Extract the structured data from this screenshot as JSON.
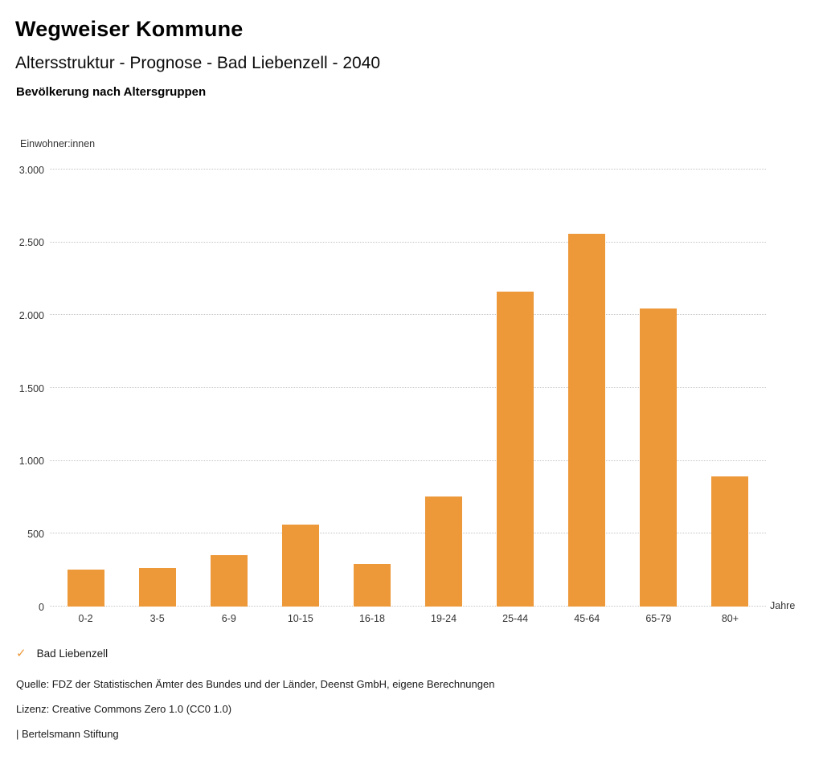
{
  "header": {
    "title": "Wegweiser Kommune",
    "subtitle": "Altersstruktur - Prognose - Bad Liebenzell - 2040",
    "chart_heading": "Bevölkerung nach Altersgruppen"
  },
  "chart_data": {
    "type": "bar",
    "title": "Bevölkerung nach Altersgruppen",
    "categories": [
      "0-2",
      "3-5",
      "6-9",
      "10-15",
      "16-18",
      "19-24",
      "25-44",
      "45-64",
      "65-79",
      "80+"
    ],
    "series": [
      {
        "name": "Bad Liebenzell",
        "values": [
          255,
          265,
          355,
          560,
          295,
          755,
          2160,
          2560,
          2045,
          895
        ]
      }
    ],
    "xlabel": "Jahre",
    "ylabel": "Einwohner:innen",
    "ylim": [
      0,
      3000
    ],
    "ytick_step": 500,
    "ytick_labels": [
      "0",
      "500",
      "1.000",
      "1.500",
      "2.000",
      "2.500",
      "3.000"
    ],
    "grid": "horizontal-dotted",
    "legend_position": "bottom-left",
    "bar_color": "#ED9839"
  },
  "legend": {
    "check_icon": "✓",
    "label": "Bad Liebenzell"
  },
  "footer": {
    "source": "Quelle: FDZ der Statistischen Ämter des Bundes und der Länder, Deenst GmbH, eigene Berechnungen",
    "license": "Lizenz: Creative Commons Zero 1.0 (CC0 1.0)",
    "attribution": "| Bertelsmann Stiftung"
  },
  "colors": {
    "bar": "#ED9839",
    "grid": "#c4c4c4",
    "text": "#1a1a1a",
    "background": "#ffffff"
  }
}
